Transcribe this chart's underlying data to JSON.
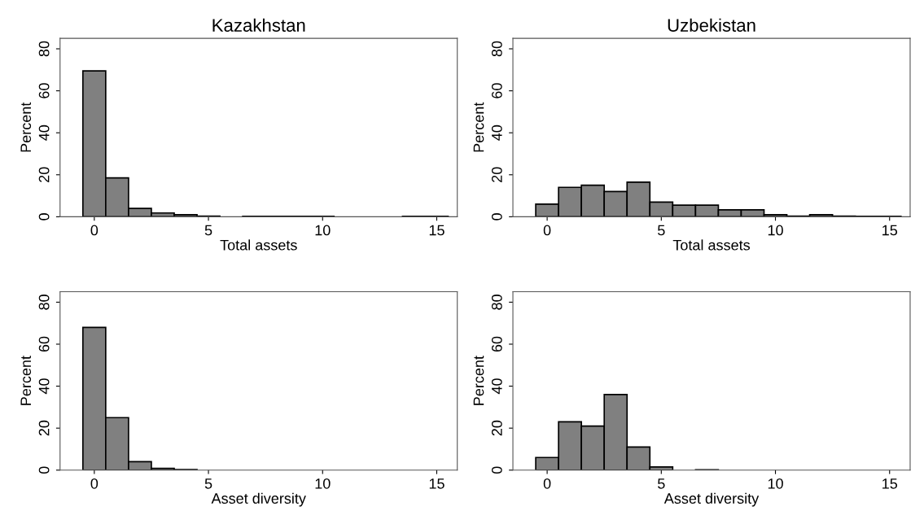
{
  "chart_data": [
    {
      "type": "histogram",
      "title": "Kazakhstan",
      "xlabel": "Total assets",
      "ylabel": "Percent",
      "color": "#808080",
      "bins": [
        -0.5,
        0.5,
        1.5,
        2.5,
        3.5,
        4.5,
        5.5,
        6.5,
        7.5,
        8.5,
        9.5,
        10.5,
        11.5,
        12.5,
        13.5,
        14.5,
        15.5
      ],
      "values": [
        69.5,
        18.5,
        4,
        1.8,
        1,
        0.3,
        0,
        0.2,
        0.2,
        0.2,
        0.2,
        0,
        0,
        0,
        0.2,
        0.2
      ],
      "xlim": [
        -1.5,
        15.9
      ],
      "ylim": [
        0,
        85
      ],
      "xticks": [
        0,
        5,
        10,
        15
      ],
      "yticks": [
        0,
        20,
        40,
        60,
        80
      ],
      "grid": false
    },
    {
      "type": "histogram",
      "title": "Uzbekistan",
      "xlabel": "Total assets",
      "ylabel": "Percent",
      "color": "#808080",
      "bins": [
        -0.5,
        0.5,
        1.5,
        2.5,
        3.5,
        4.5,
        5.5,
        6.5,
        7.5,
        8.5,
        9.5,
        10.5,
        11.5,
        12.5,
        13.5,
        14.5,
        15.5
      ],
      "values": [
        6,
        14,
        15,
        12,
        16.5,
        7,
        5.5,
        5.5,
        3.3,
        3.3,
        1,
        0.3,
        1,
        0.3,
        0.2,
        0.2
      ],
      "xlim": [
        -1.5,
        15.9
      ],
      "ylim": [
        0,
        85
      ],
      "xticks": [
        0,
        5,
        10,
        15
      ],
      "yticks": [
        0,
        20,
        40,
        60,
        80
      ],
      "grid": false
    },
    {
      "type": "histogram",
      "xlabel": "Asset diversity",
      "ylabel": "Percent",
      "color": "#808080",
      "bins": [
        -0.5,
        0.5,
        1.5,
        2.5,
        3.5,
        4.5,
        5.5,
        6.5,
        7.5,
        8.5,
        9.5,
        10.5,
        11.5,
        12.5,
        13.5,
        14.5,
        15.5
      ],
      "values": [
        68,
        25,
        4,
        0.8,
        0.3,
        null,
        null,
        null,
        null,
        0,
        0,
        0,
        0,
        0,
        0,
        0
      ],
      "xlim": [
        -1.5,
        15.9
      ],
      "ylim": [
        0,
        85
      ],
      "xticks": [
        0,
        5,
        10,
        15
      ],
      "yticks": [
        0,
        20,
        40,
        60,
        80
      ],
      "grid": false
    },
    {
      "type": "histogram",
      "xlabel": "Asset diversity",
      "ylabel": "Percent",
      "color": "#808080",
      "bins": [
        -0.5,
        0.5,
        1.5,
        2.5,
        3.5,
        4.5,
        5.5,
        6.5,
        7.5,
        8.5,
        9.5,
        10.5,
        11.5,
        12.5,
        13.5,
        14.5,
        15.5
      ],
      "values": [
        6,
        23,
        21,
        36,
        11,
        1.5,
        0,
        0.2,
        0,
        0,
        0,
        0,
        0,
        0,
        0,
        0
      ],
      "xlim": [
        -1.5,
        15.9
      ],
      "ylim": [
        0,
        85
      ],
      "xticks": [
        0,
        5,
        10,
        15
      ],
      "yticks": [
        0,
        20,
        40,
        60,
        80
      ],
      "grid": false
    }
  ]
}
